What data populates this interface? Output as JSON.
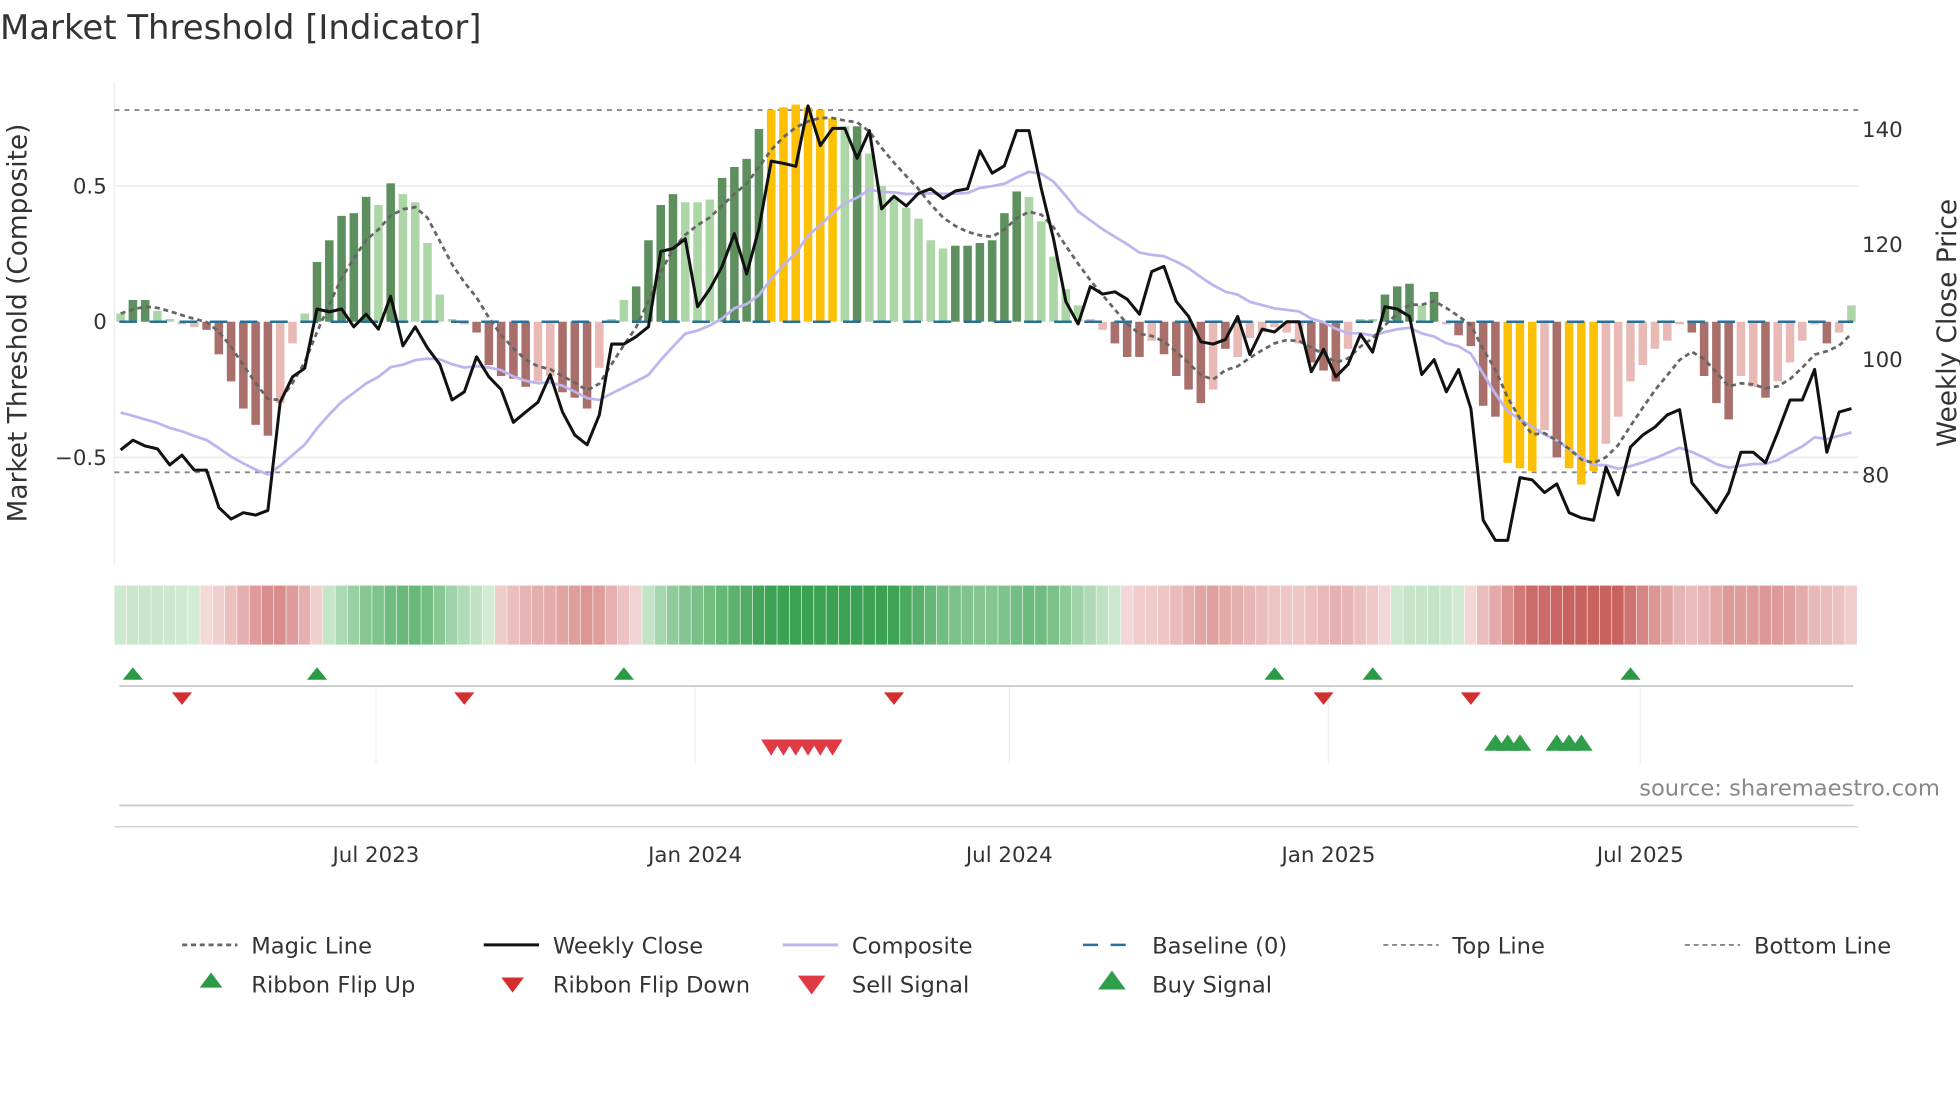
{
  "chart_data": {
    "type": "bar",
    "title": "Market Threshold [Indicator]",
    "ylabel_left": "Market Threshold (Composite)",
    "ylabel_right": "Weekly Close Price",
    "source": "source: sharemaestro.com",
    "left_ticks": [
      {
        "v": 0.5,
        "label": "0.5"
      },
      {
        "v": 0,
        "label": "0"
      },
      {
        "v": -0.5,
        "label": "−0.5"
      }
    ],
    "right_ticks": [
      {
        "v": 140,
        "label": "140"
      },
      {
        "v": 120,
        "label": "120"
      },
      {
        "v": 100,
        "label": "100"
      },
      {
        "v": 80,
        "label": "80"
      }
    ],
    "x_ticks": [
      {
        "week": 20.8,
        "label": "Jul 2023"
      },
      {
        "week": 46.8,
        "label": "Jan 2024"
      },
      {
        "week": 72.4,
        "label": "Jul 2024"
      },
      {
        "week": 98.4,
        "label": "Jan 2025"
      },
      {
        "week": 123.8,
        "label": "Jul 2025"
      }
    ],
    "top_line": 0.78,
    "bottom_line": -0.555,
    "baseline": 0,
    "magic_smoothing_alpha": 0.3,
    "composite_line_alpha": 0.12,
    "composite_line_start": 91.7,
    "composite": [
      0.03,
      0.08,
      0.08,
      0.04,
      0.01,
      -0.01,
      -0.02,
      -0.03,
      -0.12,
      -0.22,
      -0.32,
      -0.38,
      -0.42,
      -0.3,
      -0.08,
      0.03,
      0.22,
      0.3,
      0.39,
      0.4,
      0.46,
      0.43,
      0.51,
      0.47,
      0.44,
      0.29,
      0.1,
      0.01,
      -0.01,
      -0.04,
      -0.16,
      -0.2,
      -0.21,
      -0.24,
      -0.22,
      -0.2,
      -0.26,
      -0.28,
      -0.32,
      -0.17,
      0.01,
      0.08,
      0.13,
      0.3,
      0.43,
      0.47,
      0.44,
      0.44,
      0.45,
      0.53,
      0.57,
      0.6,
      0.71,
      0.78,
      0.79,
      0.8,
      0.79,
      0.78,
      0.75,
      0.72,
      0.72,
      0.62,
      0.5,
      0.46,
      0.42,
      0.38,
      0.3,
      0.27,
      0.28,
      0.28,
      0.29,
      0.3,
      0.4,
      0.48,
      0.46,
      0.37,
      0.24,
      0.12,
      0.06,
      0.01,
      -0.03,
      -0.08,
      -0.13,
      -0.13,
      -0.07,
      -0.12,
      -0.2,
      -0.25,
      -0.3,
      -0.25,
      -0.1,
      -0.13,
      -0.06,
      -0.04,
      -0.02,
      -0.04,
      -0.08,
      -0.15,
      -0.18,
      -0.22,
      -0.1,
      0.01,
      0.01,
      0.1,
      0.13,
      0.14,
      0.06,
      0.11,
      -0.01,
      -0.05,
      -0.09,
      -0.31,
      -0.35,
      -0.52,
      -0.54,
      -0.55,
      -0.4,
      -0.5,
      -0.54,
      -0.6,
      -0.55,
      -0.45,
      -0.35,
      -0.22,
      -0.16,
      -0.1,
      -0.07,
      -0.01,
      -0.04,
      -0.2,
      -0.3,
      -0.36,
      -0.2,
      -0.24,
      -0.28,
      -0.22,
      -0.15,
      -0.07,
      -0.01,
      -0.08,
      -0.04,
      0.06
    ],
    "bar_states": "LDDLLPPRRRRRRPPLDDDDDLDLLLLLPRRRRRPPRRRPLLDDDDLLLDDDDYYYYYYLDLLLLLLLDDDDDDLLLLLPPRRRPRRRRPRPPPPPPRRRPLLDDDLDPRRRRYYYPRYYYPPPPPPPRRRRPPRPPPPRPL",
    "bar_state_colors": {
      "D": "#5e8f5e",
      "L": "#acd6a6",
      "R": "#a86f6b",
      "P": "#e9bab5",
      "Y": "#fcc105"
    },
    "weekly_close": [
      84.3,
      86,
      85,
      84.5,
      81.7,
      83.4,
      80.8,
      80.8,
      74.3,
      72.3,
      73.4,
      73,
      73.8,
      92.6,
      97,
      98.5,
      108.8,
      108.3,
      108.8,
      105.7,
      107.9,
      105.3,
      111,
      102.4,
      105.7,
      102,
      99.2,
      93,
      94.4,
      100.5,
      97,
      94.8,
      89.1,
      90.9,
      92.6,
      97.4,
      90.9,
      86.9,
      85.2,
      90.4,
      102.7,
      102.7,
      104,
      105.7,
      118.8,
      119.3,
      121,
      109.2,
      112.3,
      116.2,
      121.9,
      114.9,
      122.7,
      134.5,
      134.1,
      133.6,
      144.1,
      137.2,
      140.2,
      140.2,
      135,
      139.8,
      126.2,
      128.4,
      126.7,
      128.9,
      129.7,
      128,
      129.3,
      129.7,
      136.3,
      132.4,
      133.7,
      139.8,
      139.8,
      129.7,
      121,
      110.1,
      106.2,
      112.7,
      111.4,
      111.8,
      110.5,
      107.9,
      115.3,
      116.2,
      110.1,
      107.5,
      103.1,
      102.7,
      103.5,
      107.5,
      100.9,
      105.3,
      104.8,
      106.6,
      106.6,
      97.9,
      101.8,
      97,
      99.2,
      104.4,
      101.3,
      109.2,
      108.8,
      107.5,
      97.4,
      100,
      94.4,
      98.3,
      91.5,
      72.1,
      68.6,
      68.6,
      79.5,
      79.1,
      76.9,
      78.4,
      73.4,
      72.5,
      72.1,
      81.3,
      76.5,
      84.8,
      86.9,
      88.3,
      90.4,
      91.3,
      78.6,
      76,
      73.4,
      76.9,
      83.9,
      83.9,
      82.1,
      87.4,
      93,
      93,
      98.3,
      83.9,
      90.9,
      91.5
    ],
    "ribbon_flip_up_weeks": [
      1,
      16,
      41,
      94,
      102,
      123
    ],
    "ribbon_flip_down_weeks": [
      5,
      28,
      63,
      98,
      110
    ],
    "sell_signal_weeks": [
      53,
      54,
      55,
      56,
      57,
      58
    ],
    "buy_signal_weeks": [
      112,
      113,
      114,
      117,
      118,
      119
    ],
    "colors": {
      "magic": "#666666",
      "close": "#111111",
      "composite": "#bdb5ee",
      "baseline": "#2a6f97",
      "flip_up": "#2a9a45",
      "flip_down": "#d32f2f",
      "sell": "#e03a45",
      "buy": "#2e9e48"
    },
    "legend": [
      {
        "label": "Magic Line",
        "kind": "magic"
      },
      {
        "label": "Weekly Close",
        "kind": "close"
      },
      {
        "label": "Composite",
        "kind": "composite"
      },
      {
        "label": "Baseline (0)",
        "kind": "baseline"
      },
      {
        "label": "Top Line",
        "kind": "top"
      },
      {
        "label": "Bottom Line",
        "kind": "bottom"
      },
      {
        "label": "Ribbon Flip Up",
        "kind": "flipup"
      },
      {
        "label": "Ribbon Flip Down",
        "kind": "flipdown"
      },
      {
        "label": "Sell Signal",
        "kind": "sell"
      },
      {
        "label": "Buy Signal",
        "kind": "buy"
      }
    ]
  }
}
